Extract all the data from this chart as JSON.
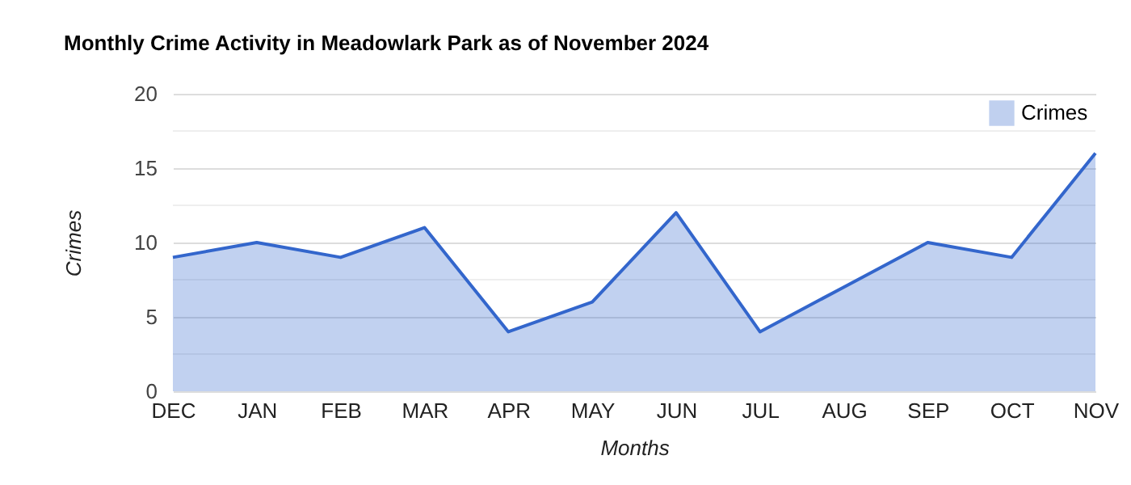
{
  "chart_data": {
    "type": "area",
    "title": "Monthly Crime Activity in Meadowlark Park as of November 2024",
    "xlabel": "Months",
    "ylabel": "Crimes",
    "categories": [
      "DEC",
      "JAN",
      "FEB",
      "MAR",
      "APR",
      "MAY",
      "JUN",
      "JUL",
      "AUG",
      "SEP",
      "OCT",
      "NOV"
    ],
    "series": [
      {
        "name": "Crimes",
        "color": "#3366cc",
        "values": [
          9,
          10,
          9,
          11,
          4,
          6,
          12,
          4,
          7,
          10,
          9,
          16
        ]
      }
    ],
    "ylim": [
      0,
      20
    ],
    "yticks": [
      0,
      {
        "value": 2.5,
        "label": null
      },
      5,
      {
        "value": 7.5,
        "label": null
      },
      10,
      {
        "value": 12.5,
        "label": null
      },
      15,
      {
        "value": 17.5,
        "label": null
      },
      20
    ],
    "grid": "y",
    "legend": "top right"
  }
}
